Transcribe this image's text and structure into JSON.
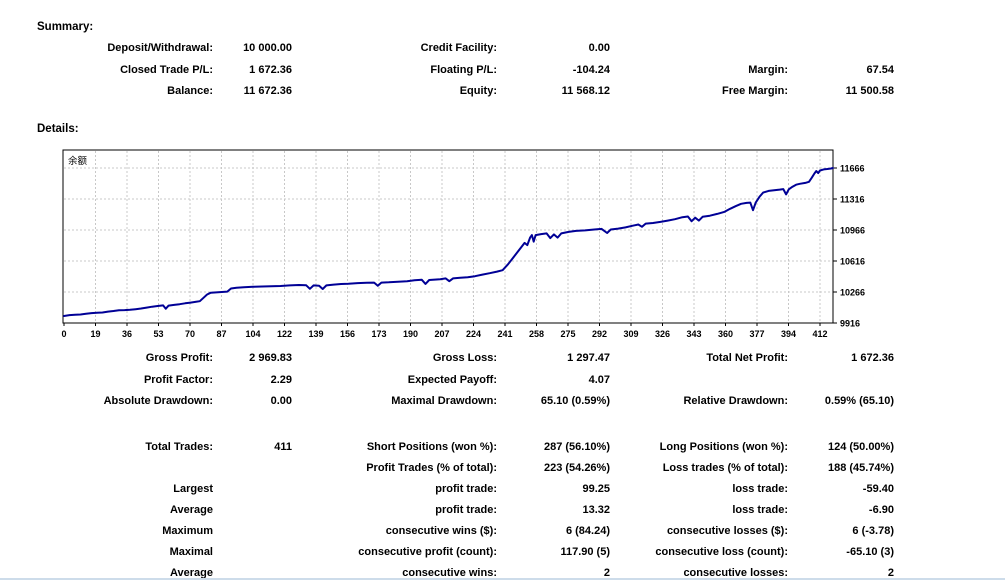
{
  "sections": {
    "summary": "Summary:",
    "details": "Details:"
  },
  "summary": {
    "rows": [
      [
        "Deposit/Withdrawal:",
        "10 000.00",
        "Credit Facility:",
        "0.00",
        "",
        ""
      ],
      [
        "Closed Trade P/L:",
        "1 672.36",
        "Floating P/L:",
        "-104.24",
        "Margin:",
        "67.54"
      ],
      [
        "Balance:",
        "11 672.36",
        "Equity:",
        "11 568.12",
        "Free Margin:",
        "11 500.58"
      ]
    ]
  },
  "results": {
    "performance_rows": [
      [
        "Gross Profit:",
        "2 969.83",
        "Gross Loss:",
        "1 297.47",
        "Total Net Profit:",
        "1 672.36"
      ],
      [
        "Profit Factor:",
        "2.29",
        "Expected Payoff:",
        "4.07",
        "",
        ""
      ],
      [
        "Absolute Drawdown:",
        "0.00",
        "Maximal Drawdown:",
        "65.10 (0.59%)",
        "Relative Drawdown:",
        "0.59% (65.10)"
      ]
    ],
    "trade_rows": [
      [
        "Total Trades:",
        "411",
        "Short Positions (won %):",
        "287 (56.10%)",
        "Long Positions (won %):",
        "124 (50.00%)"
      ],
      [
        "",
        "",
        "Profit Trades (% of total):",
        "223 (54.26%)",
        "Loss trades (% of total):",
        "188 (45.74%)"
      ],
      [
        "Largest",
        "",
        "profit trade:",
        "99.25",
        "loss trade:",
        "-59.40"
      ],
      [
        "Average",
        "",
        "profit trade:",
        "13.32",
        "loss trade:",
        "-6.90"
      ],
      [
        "Maximum",
        "",
        "consecutive wins ($):",
        "6 (84.24)",
        "consecutive losses ($):",
        "6 (-3.78)"
      ],
      [
        "Maximal",
        "",
        "consecutive profit (count):",
        "117.90 (5)",
        "consecutive loss (count):",
        "-65.10 (3)"
      ],
      [
        "Average",
        "",
        "consecutive wins:",
        "2",
        "consecutive losses:",
        "2"
      ]
    ]
  },
  "chart_data": {
    "type": "line",
    "title": "余额",
    "x_ticks": [
      0,
      19,
      36,
      53,
      70,
      87,
      104,
      122,
      139,
      156,
      173,
      190,
      207,
      224,
      241,
      258,
      275,
      292,
      309,
      326,
      343,
      360,
      377,
      394,
      412
    ],
    "y_ticks": [
      9916,
      10266,
      10616,
      10966,
      11316,
      11666
    ],
    "grid": "dashed",
    "legend_position": "top-left-inside",
    "line_color": "#000096",
    "grid_color": "#c8c8c8",
    "series": [
      {
        "name": "余额",
        "points": [
          [
            0,
            9995
          ],
          [
            3,
            10005
          ],
          [
            6,
            10010
          ],
          [
            9,
            10012
          ],
          [
            12,
            10020
          ],
          [
            15,
            10028
          ],
          [
            18,
            10032
          ],
          [
            21,
            10035
          ],
          [
            24,
            10045
          ],
          [
            27,
            10052
          ],
          [
            30,
            10060
          ],
          [
            33,
            10062
          ],
          [
            36,
            10065
          ],
          [
            39,
            10072
          ],
          [
            42,
            10080
          ],
          [
            45,
            10090
          ],
          [
            48,
            10100
          ],
          [
            51,
            10108
          ],
          [
            54,
            10115
          ],
          [
            55.5,
            10078
          ],
          [
            57,
            10112
          ],
          [
            60,
            10120
          ],
          [
            63,
            10128
          ],
          [
            66,
            10138
          ],
          [
            69,
            10146
          ],
          [
            72,
            10155
          ],
          [
            74,
            10162
          ],
          [
            76,
            10200
          ],
          [
            78,
            10238
          ],
          [
            80,
            10258
          ],
          [
            83,
            10262
          ],
          [
            86,
            10266
          ],
          [
            89,
            10270
          ],
          [
            91,
            10305
          ],
          [
            94,
            10315
          ],
          [
            98,
            10320
          ],
          [
            103,
            10325
          ],
          [
            108,
            10328
          ],
          [
            113,
            10330
          ],
          [
            118,
            10334
          ],
          [
            123,
            10340
          ],
          [
            128,
            10345
          ],
          [
            132,
            10342
          ],
          [
            134,
            10302
          ],
          [
            136,
            10340
          ],
          [
            139,
            10336
          ],
          [
            141,
            10300
          ],
          [
            143,
            10340
          ],
          [
            147,
            10350
          ],
          [
            151,
            10356
          ],
          [
            155,
            10360
          ],
          [
            160,
            10366
          ],
          [
            165,
            10370
          ],
          [
            169,
            10372
          ],
          [
            171,
            10336
          ],
          [
            173,
            10372
          ],
          [
            177,
            10376
          ],
          [
            182,
            10382
          ],
          [
            187,
            10388
          ],
          [
            191,
            10398
          ],
          [
            195,
            10404
          ],
          [
            197,
            10358
          ],
          [
            199,
            10402
          ],
          [
            202,
            10406
          ],
          [
            205,
            10410
          ],
          [
            208,
            10420
          ],
          [
            210,
            10388
          ],
          [
            212,
            10420
          ],
          [
            216,
            10426
          ],
          [
            220,
            10432
          ],
          [
            224,
            10444
          ],
          [
            228,
            10462
          ],
          [
            232,
            10478
          ],
          [
            236,
            10496
          ],
          [
            239,
            10512
          ],
          [
            242,
            10580
          ],
          [
            245,
            10660
          ],
          [
            248,
            10740
          ],
          [
            251,
            10820
          ],
          [
            252.5,
            10795
          ],
          [
            254,
            10880
          ],
          [
            255,
            10908
          ],
          [
            256,
            10835
          ],
          [
            257,
            10908
          ],
          [
            260,
            10920
          ],
          [
            263,
            10928
          ],
          [
            265,
            10875
          ],
          [
            267,
            10916
          ],
          [
            269,
            10880
          ],
          [
            271,
            10928
          ],
          [
            275,
            10945
          ],
          [
            279,
            10956
          ],
          [
            284,
            10962
          ],
          [
            289,
            10972
          ],
          [
            293,
            10978
          ],
          [
            296,
            10932
          ],
          [
            298,
            10972
          ],
          [
            302,
            10982
          ],
          [
            306,
            10995
          ],
          [
            310,
            11015
          ],
          [
            313,
            11028
          ],
          [
            315,
            11002
          ],
          [
            317,
            11038
          ],
          [
            321,
            11045
          ],
          [
            325,
            11058
          ],
          [
            329,
            11072
          ],
          [
            333,
            11088
          ],
          [
            337,
            11110
          ],
          [
            340,
            11118
          ],
          [
            342,
            11065
          ],
          [
            344,
            11105
          ],
          [
            346,
            11072
          ],
          [
            348,
            11115
          ],
          [
            352,
            11128
          ],
          [
            356,
            11148
          ],
          [
            360,
            11172
          ],
          [
            363,
            11205
          ],
          [
            366,
            11235
          ],
          [
            369,
            11262
          ],
          [
            372,
            11272
          ],
          [
            374,
            11275
          ],
          [
            375.5,
            11190
          ],
          [
            377,
            11278
          ],
          [
            379,
            11340
          ],
          [
            381,
            11388
          ],
          [
            384,
            11408
          ],
          [
            387,
            11415
          ],
          [
            390,
            11422
          ],
          [
            392,
            11428
          ],
          [
            393.5,
            11368
          ],
          [
            395,
            11425
          ],
          [
            397,
            11455
          ],
          [
            399,
            11478
          ],
          [
            401,
            11488
          ],
          [
            404,
            11498
          ],
          [
            406,
            11510
          ],
          [
            407.5,
            11555
          ],
          [
            409,
            11605
          ],
          [
            410,
            11632
          ],
          [
            411,
            11608
          ],
          [
            412,
            11638
          ],
          [
            414,
            11650
          ],
          [
            416,
            11655
          ],
          [
            418,
            11660
          ],
          [
            419,
            11666
          ]
        ]
      }
    ]
  },
  "colors": {
    "separator": "#cddcea",
    "text": "#000000",
    "background": "#ffffff"
  }
}
